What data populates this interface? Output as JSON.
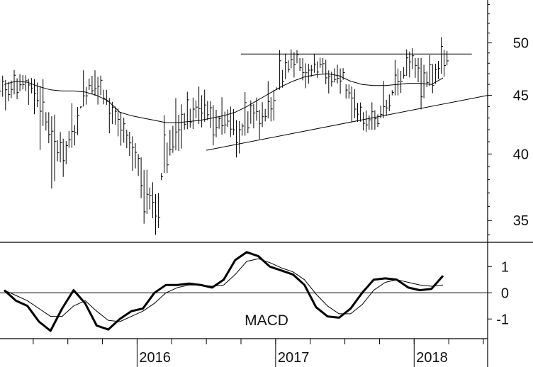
{
  "chart_data": [
    {
      "type": "bar",
      "subtype": "ohlc-price",
      "price_axis": {
        "scale": "log",
        "ylim": [
          33.5,
          54.5
        ],
        "ticks": [
          "35",
          "40",
          "45",
          "50"
        ],
        "side": "right"
      },
      "x_axis": {
        "ticks": [
          "2016",
          "2017",
          "2018"
        ],
        "range": [
          "2015-01",
          "2018-07"
        ]
      },
      "series": [
        {
          "kind": "weekly-range",
          "dates": [
            "2015-01",
            "2015-02",
            "2015-03",
            "2015-04",
            "2015-05",
            "2015-06",
            "2015-07",
            "2015-08",
            "2015-09",
            "2015-10",
            "2015-11",
            "2015-12",
            "2016-01",
            "2016-02",
            "2016-03",
            "2016-04",
            "2016-05",
            "2016-06",
            "2016-07",
            "2016-08",
            "2016-09",
            "2016-10",
            "2016-11",
            "2016-12",
            "2017-01",
            "2017-02",
            "2017-03",
            "2017-04",
            "2017-05",
            "2017-06",
            "2017-07",
            "2017-08",
            "2017-09",
            "2017-10",
            "2017-11",
            "2017-12",
            "2018-01",
            "2018-02",
            "2018-03"
          ],
          "close": [
            45.5,
            46.2,
            45.8,
            44.5,
            40.5,
            40.0,
            42.5,
            46.0,
            45.8,
            43.5,
            42.0,
            40.0,
            36.8,
            35.5,
            41.0,
            42.0,
            43.5,
            44.0,
            42.5,
            43.0,
            41.5,
            43.5,
            43.0,
            44.0,
            47.5,
            48.5,
            47.0,
            48.0,
            46.5,
            47.0,
            44.0,
            42.5,
            42.8,
            44.5,
            46.5,
            48.5,
            46.5,
            47.0,
            48.5
          ],
          "high": [
            47.0,
            47.5,
            47.0,
            46.5,
            43.5,
            42.0,
            44.5,
            47.5,
            47.5,
            45.5,
            44.0,
            42.0,
            40.0,
            38.0,
            43.5,
            45.0,
            45.5,
            46.0,
            44.5,
            45.0,
            44.0,
            45.5,
            45.0,
            46.5,
            49.5,
            49.5,
            48.5,
            49.0,
            48.5,
            48.0,
            46.0,
            44.5,
            44.5,
            46.5,
            48.5,
            49.5,
            48.5,
            49.0,
            50.8
          ],
          "low": [
            43.5,
            44.5,
            44.0,
            40.0,
            37.0,
            38.0,
            40.5,
            44.0,
            44.0,
            41.5,
            40.5,
            38.5,
            34.5,
            33.8,
            38.5,
            40.0,
            42.0,
            42.0,
            40.5,
            41.5,
            39.5,
            41.5,
            41.0,
            42.5,
            45.5,
            46.5,
            45.5,
            46.5,
            45.0,
            45.0,
            42.5,
            41.8,
            42.0,
            43.0,
            45.0,
            46.5,
            43.5,
            45.0,
            46.5
          ]
        },
        {
          "kind": "moving-average",
          "values": [
            46.0,
            46.3,
            46.2,
            45.8,
            45.5,
            45.4,
            45.4,
            45.3,
            45.0,
            44.5,
            43.5,
            43.2,
            43.0,
            42.8,
            42.6,
            42.6,
            42.7,
            42.8,
            43.0,
            43.2,
            43.5,
            44.0,
            44.6,
            45.2,
            45.8,
            46.3,
            46.7,
            46.9,
            47.0,
            46.8,
            46.3,
            46.0,
            45.9,
            45.9,
            46.0,
            46.1,
            46.1,
            46.0,
            46.6
          ]
        }
      ],
      "annotations": [
        {
          "kind": "horizontal-resistance",
          "value": 48.9,
          "from": "2016-10",
          "to": "2018-06"
        },
        {
          "kind": "rising-trendline",
          "from": {
            "x": "2016-07",
            "y": 40.3
          },
          "to": {
            "x": "2018-07",
            "y": 45.0
          }
        }
      ]
    },
    {
      "type": "line",
      "title": "MACD",
      "ylim": [
        -1.75,
        1.9
      ],
      "y_ticks": [
        "1",
        "0",
        "-1"
      ],
      "zero_line": true,
      "x": [
        "2015-01",
        "2015-02",
        "2015-03",
        "2015-04",
        "2015-05",
        "2015-06",
        "2015-07",
        "2015-08",
        "2015-09",
        "2015-10",
        "2015-11",
        "2015-12",
        "2016-01",
        "2016-02",
        "2016-03",
        "2016-04",
        "2016-05",
        "2016-06",
        "2016-07",
        "2016-08",
        "2016-09",
        "2016-10",
        "2016-11",
        "2016-12",
        "2017-01",
        "2017-02",
        "2017-03",
        "2017-04",
        "2017-05",
        "2017-06",
        "2017-07",
        "2017-08",
        "2017-09",
        "2017-10",
        "2017-11",
        "2017-12",
        "2018-01",
        "2018-02",
        "2018-03"
      ],
      "series": [
        {
          "style": "bold",
          "values": [
            0.1,
            -0.3,
            -0.5,
            -1.1,
            -1.45,
            -0.6,
            0.1,
            -0.4,
            -1.25,
            -1.4,
            -1.0,
            -0.7,
            -0.6,
            0.0,
            0.3,
            0.3,
            0.35,
            0.3,
            0.2,
            0.5,
            1.25,
            1.55,
            1.4,
            1.0,
            0.85,
            0.7,
            0.3,
            -0.55,
            -0.9,
            -0.95,
            -0.6,
            0.0,
            0.5,
            0.55,
            0.5,
            0.2,
            0.1,
            0.15,
            0.65
          ]
        },
        {
          "style": "thin",
          "values": [
            0.1,
            -0.1,
            -0.3,
            -0.6,
            -0.9,
            -0.9,
            -0.5,
            -0.3,
            -0.7,
            -1.05,
            -1.1,
            -0.9,
            -0.7,
            -0.4,
            0.0,
            0.2,
            0.3,
            0.3,
            0.25,
            0.3,
            0.7,
            1.2,
            1.3,
            1.15,
            0.95,
            0.8,
            0.5,
            -0.05,
            -0.5,
            -0.8,
            -0.8,
            -0.45,
            0.1,
            0.4,
            0.5,
            0.4,
            0.3,
            0.25,
            0.3
          ]
        }
      ]
    }
  ]
}
